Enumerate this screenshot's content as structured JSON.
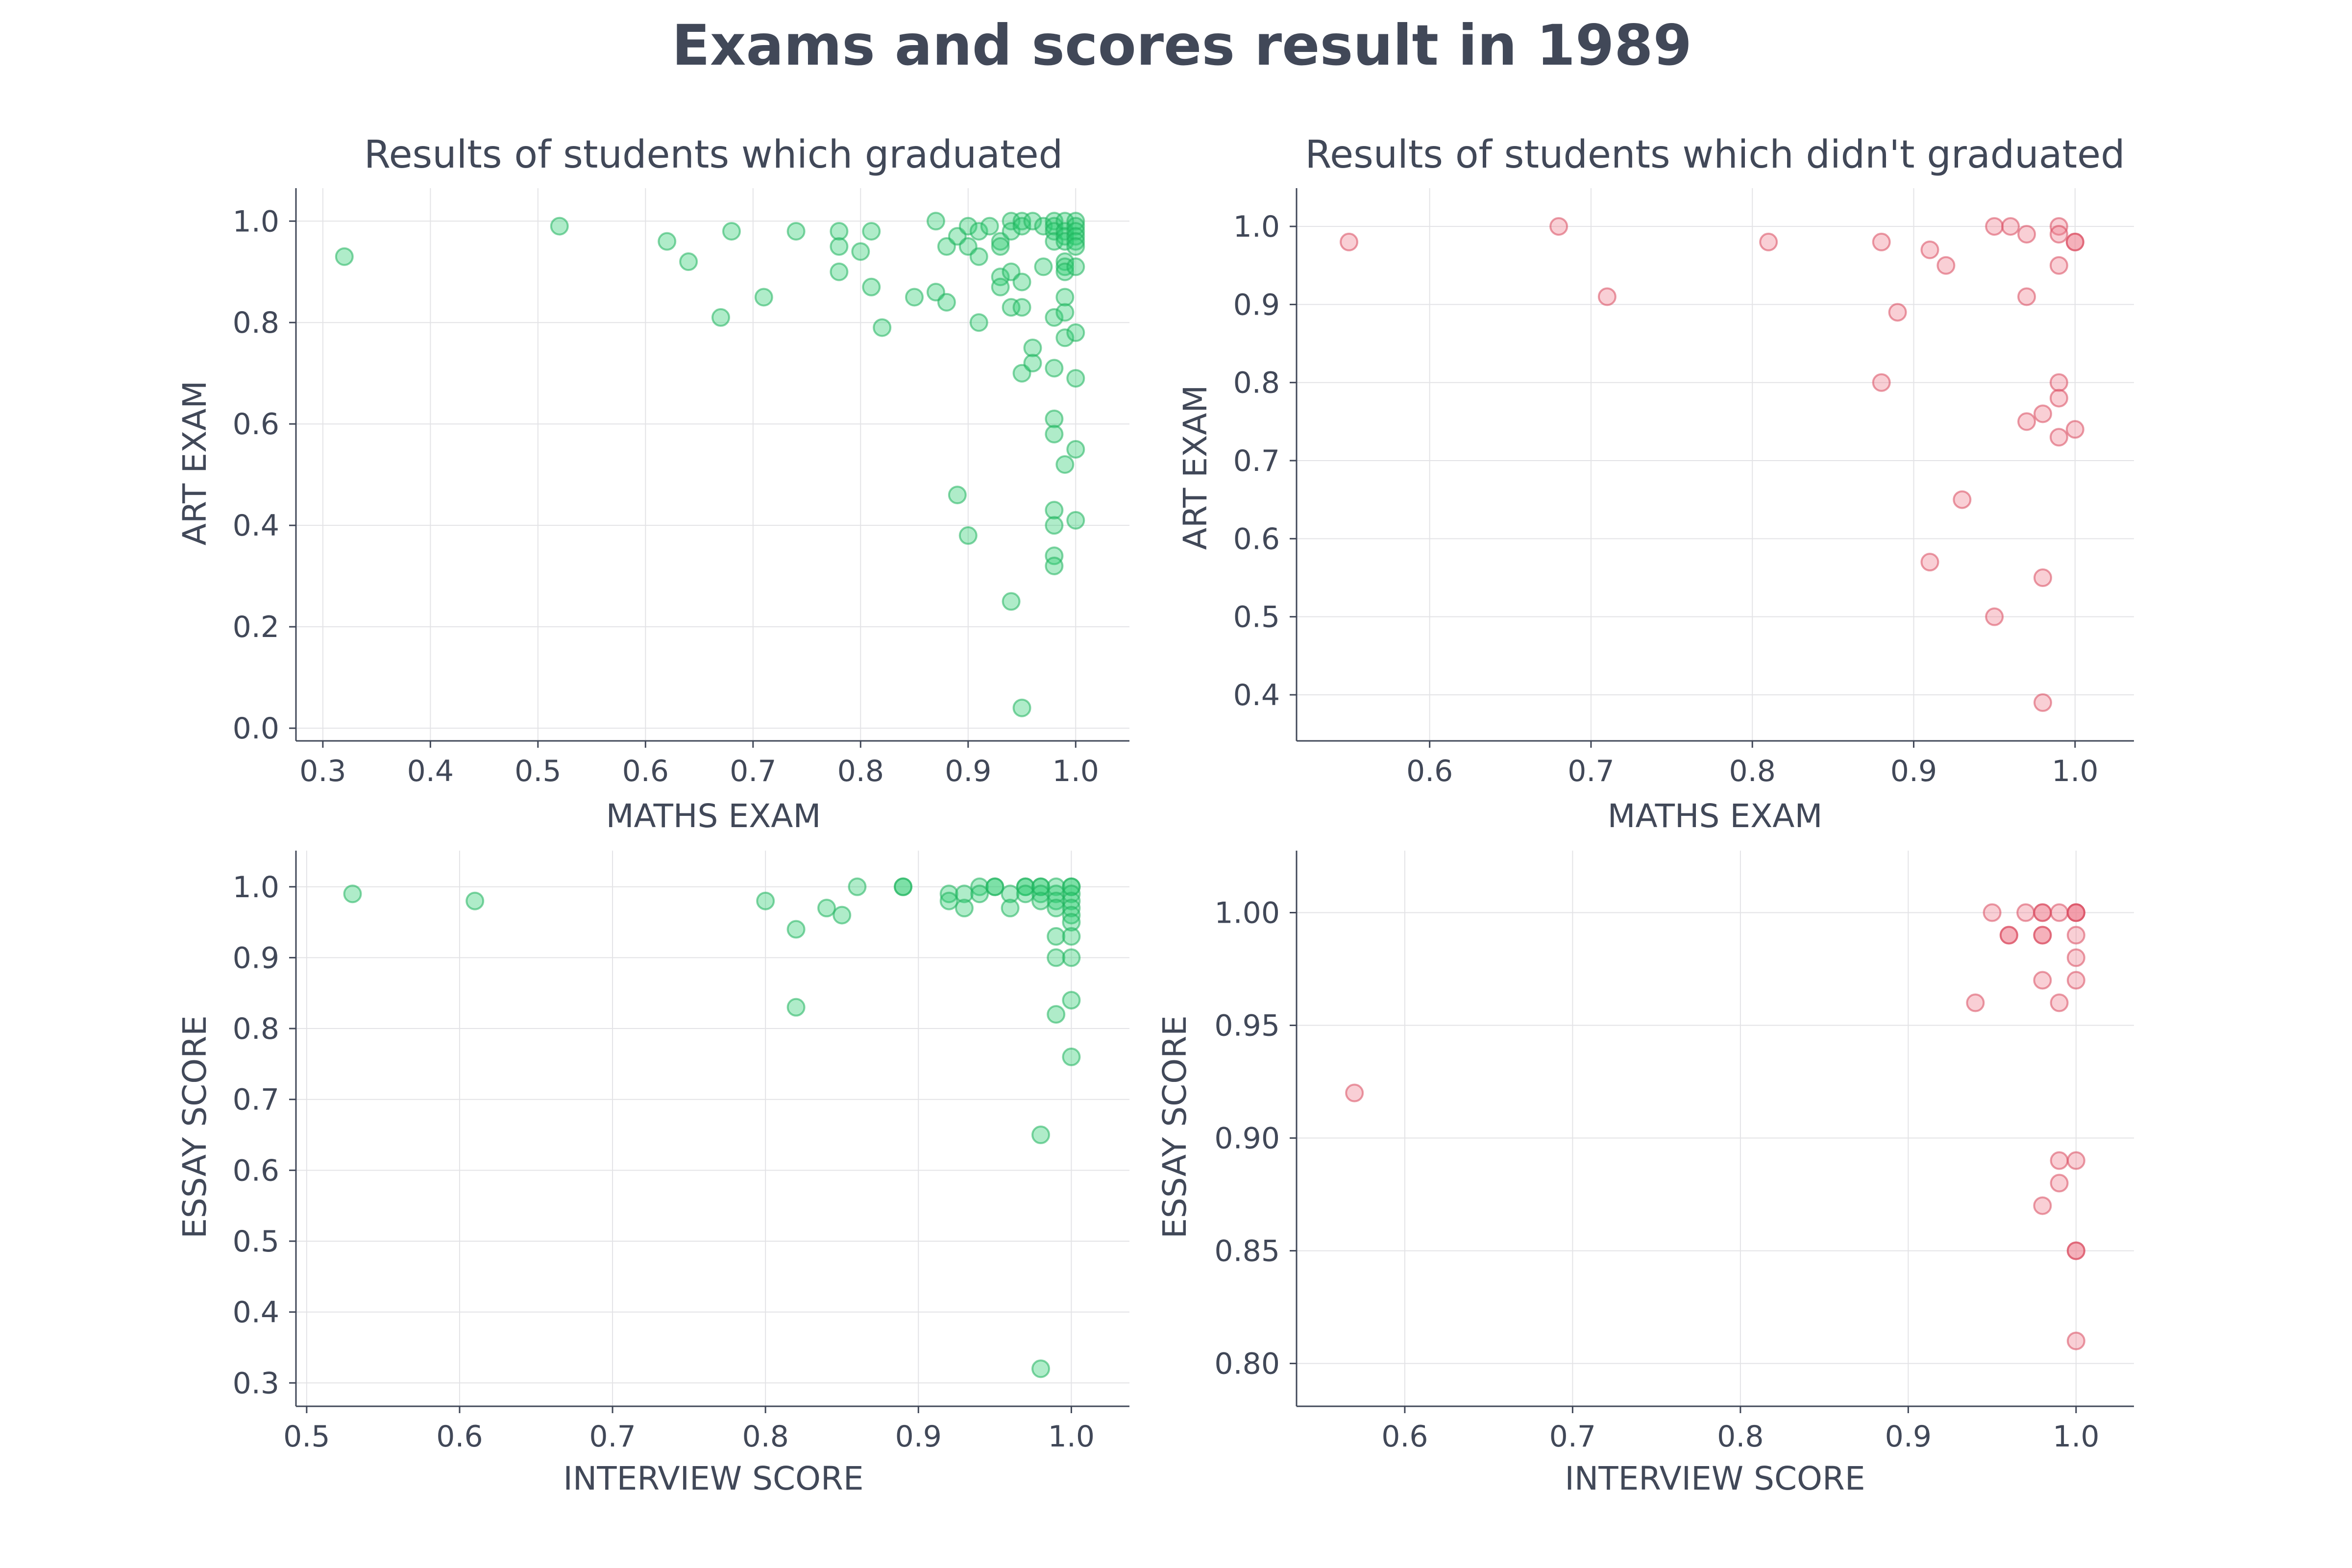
{
  "figure": {
    "title": "Exams and scores result in 1989"
  },
  "colors": {
    "graduated": "#2ecc71",
    "graduated_edge": "#1fb35c",
    "not_graduated": "#f08090",
    "not_graduated_edge": "#d94a5e",
    "text": "#414858"
  },
  "chart_data": [
    {
      "type": "scatter",
      "title": "Results of students which graduated",
      "xlabel": "MATHS EXAM",
      "ylabel": "ART EXAM",
      "xlim": [
        0.275,
        1.05
      ],
      "ylim": [
        -0.025,
        1.065
      ],
      "xticks": [
        0.3,
        0.4,
        0.5,
        0.6,
        0.7,
        0.8,
        0.9,
        1.0
      ],
      "yticks": [
        0.0,
        0.2,
        0.4,
        0.6,
        0.8,
        1.0
      ],
      "xtick_labels": [
        "0.3",
        "0.4",
        "0.5",
        "0.6",
        "0.7",
        "0.8",
        "0.9",
        "1.0"
      ],
      "ytick_labels": [
        "0.0",
        "0.2",
        "0.4",
        "0.6",
        "0.8",
        "1.0"
      ],
      "series_color": "graduated",
      "points": [
        [
          0.32,
          0.93
        ],
        [
          0.52,
          0.99
        ],
        [
          0.62,
          0.96
        ],
        [
          0.64,
          0.92
        ],
        [
          0.67,
          0.81
        ],
        [
          0.68,
          0.98
        ],
        [
          0.71,
          0.85
        ],
        [
          0.74,
          0.98
        ],
        [
          0.78,
          0.98
        ],
        [
          0.78,
          0.95
        ],
        [
          0.78,
          0.9
        ],
        [
          0.8,
          0.94
        ],
        [
          0.81,
          0.98
        ],
        [
          0.81,
          0.87
        ],
        [
          0.82,
          0.79
        ],
        [
          0.85,
          0.85
        ],
        [
          0.87,
          1.0
        ],
        [
          0.87,
          0.86
        ],
        [
          0.88,
          0.95
        ],
        [
          0.88,
          0.84
        ],
        [
          0.89,
          0.97
        ],
        [
          0.89,
          0.46
        ],
        [
          0.9,
          0.99
        ],
        [
          0.9,
          0.95
        ],
        [
          0.9,
          0.38
        ],
        [
          0.91,
          0.98
        ],
        [
          0.91,
          0.93
        ],
        [
          0.91,
          0.8
        ],
        [
          0.92,
          0.99
        ],
        [
          0.93,
          0.96
        ],
        [
          0.93,
          0.95
        ],
        [
          0.93,
          0.89
        ],
        [
          0.93,
          0.87
        ],
        [
          0.94,
          1.0
        ],
        [
          0.94,
          0.98
        ],
        [
          0.94,
          0.9
        ],
        [
          0.94,
          0.83
        ],
        [
          0.94,
          0.25
        ],
        [
          0.95,
          1.0
        ],
        [
          0.95,
          0.99
        ],
        [
          0.95,
          0.88
        ],
        [
          0.95,
          0.83
        ],
        [
          0.95,
          0.7
        ],
        [
          0.95,
          0.04
        ],
        [
          0.96,
          1.0
        ],
        [
          0.96,
          0.75
        ],
        [
          0.96,
          0.72
        ],
        [
          0.97,
          0.99
        ],
        [
          0.97,
          0.91
        ],
        [
          0.98,
          1.0
        ],
        [
          0.98,
          0.99
        ],
        [
          0.98,
          0.98
        ],
        [
          0.98,
          0.96
        ],
        [
          0.98,
          0.81
        ],
        [
          0.98,
          0.71
        ],
        [
          0.98,
          0.61
        ],
        [
          0.98,
          0.58
        ],
        [
          0.98,
          0.43
        ],
        [
          0.98,
          0.4
        ],
        [
          0.98,
          0.34
        ],
        [
          0.98,
          0.32
        ],
        [
          0.99,
          1.0
        ],
        [
          0.99,
          0.98
        ],
        [
          0.99,
          0.97
        ],
        [
          0.99,
          0.96
        ],
        [
          0.99,
          0.92
        ],
        [
          0.99,
          0.91
        ],
        [
          0.99,
          0.9
        ],
        [
          0.99,
          0.85
        ],
        [
          0.99,
          0.82
        ],
        [
          0.99,
          0.77
        ],
        [
          0.99,
          0.52
        ],
        [
          1.0,
          1.0
        ],
        [
          1.0,
          0.99
        ],
        [
          1.0,
          0.98
        ],
        [
          1.0,
          0.97
        ],
        [
          1.0,
          0.96
        ],
        [
          1.0,
          0.95
        ],
        [
          1.0,
          0.91
        ],
        [
          1.0,
          0.78
        ],
        [
          1.0,
          0.69
        ],
        [
          1.0,
          0.55
        ],
        [
          1.0,
          0.41
        ]
      ]
    },
    {
      "type": "scatter",
      "title": "Results of students which didn't graduated",
      "xlabel": "MATHS EXAM",
      "ylabel": "ART EXAM",
      "xlim": [
        0.5175,
        1.0365
      ],
      "ylim": [
        0.341,
        1.049
      ],
      "xticks": [
        0.6,
        0.7,
        0.8,
        0.9,
        1.0
      ],
      "yticks": [
        0.4,
        0.5,
        0.6,
        0.7,
        0.8,
        0.9,
        1.0
      ],
      "xtick_labels": [
        "0.6",
        "0.7",
        "0.8",
        "0.9",
        "1.0"
      ],
      "ytick_labels": [
        "0.4",
        "0.5",
        "0.6",
        "0.7",
        "0.8",
        "0.9",
        "1.0"
      ],
      "series_color": "not_graduated",
      "points": [
        [
          0.55,
          0.98
        ],
        [
          0.68,
          1.0
        ],
        [
          0.71,
          0.91
        ],
        [
          0.81,
          0.98
        ],
        [
          0.88,
          0.98
        ],
        [
          0.88,
          0.8
        ],
        [
          0.89,
          0.89
        ],
        [
          0.91,
          0.97
        ],
        [
          0.91,
          0.57
        ],
        [
          0.92,
          0.95
        ],
        [
          0.93,
          0.65
        ],
        [
          0.95,
          1.0
        ],
        [
          0.95,
          0.5
        ],
        [
          0.96,
          1.0
        ],
        [
          0.97,
          0.99
        ],
        [
          0.97,
          0.91
        ],
        [
          0.97,
          0.75
        ],
        [
          0.98,
          0.76
        ],
        [
          0.98,
          0.55
        ],
        [
          0.98,
          0.39
        ],
        [
          0.99,
          1.0
        ],
        [
          0.99,
          0.99
        ],
        [
          0.99,
          0.95
        ],
        [
          0.99,
          0.8
        ],
        [
          0.99,
          0.78
        ],
        [
          0.99,
          0.73
        ],
        [
          1.0,
          0.98
        ],
        [
          1.0,
          0.98
        ],
        [
          1.0,
          0.74
        ]
      ]
    },
    {
      "type": "scatter",
      "title": "",
      "xlabel": "INTERVIEW SCORE",
      "ylabel": "ESSAY SCORE",
      "xlim": [
        0.493,
        1.038
      ],
      "ylim": [
        0.267,
        1.051
      ],
      "xticks": [
        0.5,
        0.6,
        0.7,
        0.8,
        0.9,
        1.0
      ],
      "yticks": [
        0.3,
        0.4,
        0.5,
        0.6,
        0.7,
        0.8,
        0.9,
        1.0
      ],
      "xtick_labels": [
        "0.5",
        "0.6",
        "0.7",
        "0.8",
        "0.9",
        "1.0"
      ],
      "ytick_labels": [
        "0.3",
        "0.4",
        "0.5",
        "0.6",
        "0.7",
        "0.8",
        "0.9",
        "1.0"
      ],
      "series_color": "graduated",
      "points": [
        [
          0.53,
          0.99
        ],
        [
          0.61,
          0.98
        ],
        [
          0.8,
          0.98
        ],
        [
          0.82,
          0.94
        ],
        [
          0.82,
          0.83
        ],
        [
          0.84,
          0.97
        ],
        [
          0.85,
          0.96
        ],
        [
          0.86,
          1.0
        ],
        [
          0.89,
          1.0
        ],
        [
          0.89,
          1.0
        ],
        [
          0.92,
          0.99
        ],
        [
          0.92,
          0.98
        ],
        [
          0.93,
          0.99
        ],
        [
          0.93,
          0.97
        ],
        [
          0.94,
          1.0
        ],
        [
          0.94,
          0.99
        ],
        [
          0.95,
          1.0
        ],
        [
          0.95,
          1.0
        ],
        [
          0.96,
          0.99
        ],
        [
          0.96,
          0.97
        ],
        [
          0.97,
          1.0
        ],
        [
          0.97,
          1.0
        ],
        [
          0.97,
          0.99
        ],
        [
          0.98,
          1.0
        ],
        [
          0.98,
          1.0
        ],
        [
          0.98,
          0.99
        ],
        [
          0.98,
          0.98
        ],
        [
          0.98,
          0.65
        ],
        [
          0.98,
          0.32
        ],
        [
          0.99,
          1.0
        ],
        [
          0.99,
          0.99
        ],
        [
          0.99,
          0.98
        ],
        [
          0.99,
          0.97
        ],
        [
          0.99,
          0.93
        ],
        [
          0.99,
          0.9
        ],
        [
          0.99,
          0.82
        ],
        [
          1.0,
          1.0
        ],
        [
          1.0,
          1.0
        ],
        [
          1.0,
          0.99
        ],
        [
          1.0,
          0.98
        ],
        [
          1.0,
          0.97
        ],
        [
          1.0,
          0.96
        ],
        [
          1.0,
          0.95
        ],
        [
          1.0,
          0.93
        ],
        [
          1.0,
          0.9
        ],
        [
          1.0,
          0.84
        ],
        [
          1.0,
          0.76
        ]
      ]
    },
    {
      "type": "scatter",
      "title": "",
      "xlabel": "INTERVIEW SCORE",
      "ylabel": "ESSAY SCORE",
      "xlim": [
        0.5355,
        1.0345
      ],
      "ylim": [
        0.781,
        1.0275
      ],
      "xticks": [
        0.6,
        0.7,
        0.8,
        0.9,
        1.0
      ],
      "yticks": [
        0.8,
        0.85,
        0.9,
        0.95,
        1.0
      ],
      "xtick_labels": [
        "0.6",
        "0.7",
        "0.8",
        "0.9",
        "1.0"
      ],
      "ytick_labels": [
        "0.80",
        "0.85",
        "0.90",
        "0.95",
        "1.00"
      ],
      "series_color": "not_graduated",
      "points": [
        [
          0.57,
          0.92
        ],
        [
          0.94,
          0.96
        ],
        [
          0.95,
          1.0
        ],
        [
          0.96,
          0.99
        ],
        [
          0.96,
          0.99
        ],
        [
          0.97,
          1.0
        ],
        [
          0.98,
          1.0
        ],
        [
          0.98,
          1.0
        ],
        [
          0.98,
          0.99
        ],
        [
          0.98,
          0.99
        ],
        [
          0.98,
          0.97
        ],
        [
          0.98,
          0.87
        ],
        [
          0.99,
          1.0
        ],
        [
          0.99,
          0.96
        ],
        [
          0.99,
          0.89
        ],
        [
          0.99,
          0.88
        ],
        [
          1.0,
          1.0
        ],
        [
          1.0,
          1.0
        ],
        [
          1.0,
          1.0
        ],
        [
          1.0,
          0.99
        ],
        [
          1.0,
          0.98
        ],
        [
          1.0,
          0.97
        ],
        [
          1.0,
          0.89
        ],
        [
          1.0,
          0.85
        ],
        [
          1.0,
          0.85
        ],
        [
          1.0,
          0.81
        ]
      ]
    }
  ]
}
